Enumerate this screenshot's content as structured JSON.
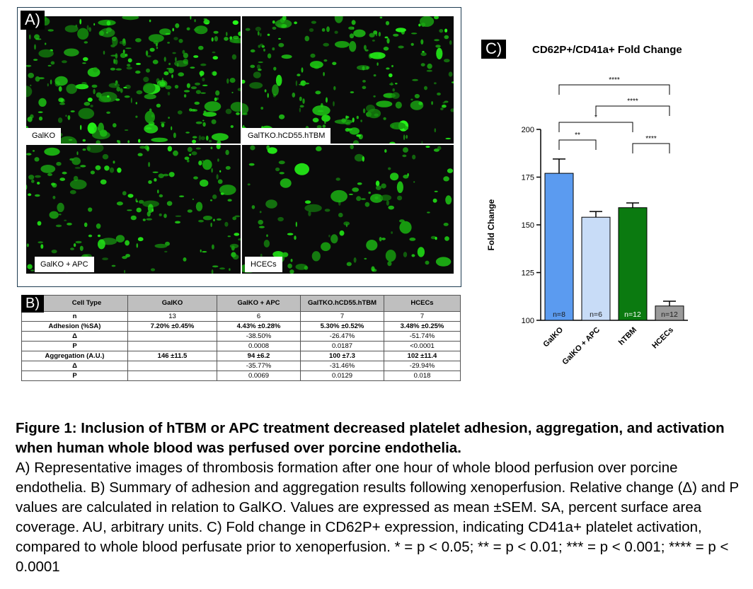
{
  "panel_a": {
    "tag": "A)",
    "images": [
      {
        "label": "GalKO",
        "seed": 11,
        "density": 260
      },
      {
        "label": "GalTKO.hCD55.hTBM",
        "seed": 23,
        "density": 200
      },
      {
        "label": "GalKO + APC",
        "seed": 37,
        "density": 170
      },
      {
        "label": "HCECs",
        "seed": 51,
        "density": 110
      }
    ]
  },
  "panel_b": {
    "tag": "B)",
    "headers": [
      "Cell Type",
      "GalKO",
      "GalKO + APC",
      "GalTKO.hCD55.hTBM",
      "HCECs"
    ],
    "rows": [
      {
        "label": "n",
        "cells": [
          "13",
          "6",
          "7",
          "7"
        ]
      },
      {
        "label": "Adhesion (%SA)",
        "cells": [
          "7.20% ±0.45%",
          "4.43% ±0.28%",
          "5.30% ±0.52%",
          "3.48% ±0.25%"
        ]
      },
      {
        "label": "Δ",
        "cells": [
          "",
          "-38.50%",
          "-26.47%",
          "-51.74%"
        ]
      },
      {
        "label": "P",
        "cells": [
          "",
          "0.0008",
          "0.0187",
          "<0.0001"
        ]
      },
      {
        "label": "Aggregation (A.U.)",
        "cells": [
          "146 ±11.5",
          "94 ±6.2",
          "100 ±7.3",
          "102 ±11.4"
        ]
      },
      {
        "label": "Δ",
        "cells": [
          "",
          "-35.77%",
          "-31.46%",
          "-29.94%"
        ]
      },
      {
        "label": "P",
        "cells": [
          "",
          "0.0069",
          "0.0129",
          "0.018"
        ]
      }
    ]
  },
  "panel_c": {
    "tag": "C)"
  },
  "chart_data": {
    "type": "bar",
    "title": "CD62P+/CD41a+ Fold Change",
    "ylabel": "Fold Change",
    "xlabel": "",
    "ylim": [
      100,
      200
    ],
    "yticks": [
      100,
      125,
      150,
      175,
      200
    ],
    "categories": [
      "GalKO",
      "GalKO + APC",
      "hTBM",
      "HCECs"
    ],
    "values": [
      177,
      154,
      159,
      107.5
    ],
    "errors": [
      7.5,
      3,
      2.5,
      2.5
    ],
    "n_labels": [
      "n=8",
      "n=6",
      "n=12",
      "n=12"
    ],
    "colors": [
      "#5b9bf0",
      "#c8dcf7",
      "#0b7a10",
      "#9a9a9a"
    ],
    "significance": [
      {
        "from": 0,
        "to": 1,
        "label": "**"
      },
      {
        "from": 0,
        "to": 2,
        "label": "*"
      },
      {
        "from": 1,
        "to": 3,
        "label": "****"
      },
      {
        "from": 0,
        "to": 3,
        "label": "****"
      },
      {
        "from": 2,
        "to": 3,
        "label": "****"
      }
    ]
  },
  "caption": {
    "title": "Figure 1: Inclusion of hTBM or APC treatment decreased platelet adhesion, aggregation, and activation when human whole blood was perfused over porcine endothelia.",
    "body": "A) Representative images of thrombosis formation after one hour of whole blood perfusion over porcine endothelia. B) Summary of adhesion and aggregation results following xenoperfusion. Relative change (Δ) and P values are calculated in relation to GalKO. Values are expressed as mean ±SEM. SA, percent surface area coverage. AU, arbitrary units. C) Fold change in CD62P+ expression, indicating CD41a+ platelet activation, compared to whole blood perfusate prior to xenoperfusion. * = p < 0.05; ** = p < 0.01; *** = p < 0.001; **** = p < 0.0001"
  }
}
